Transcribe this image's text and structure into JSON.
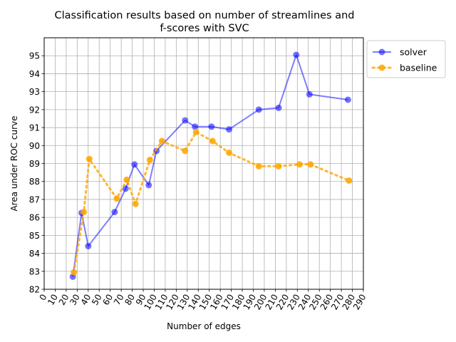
{
  "chart_data": {
    "type": "line",
    "title": [
      "Classification results based on number of streamlines and",
      "f-scores with SVC"
    ],
    "xlabel": "Number of edges",
    "ylabel": "Area under ROC curve",
    "xlim": [
      0,
      290
    ],
    "ylim": [
      82,
      96
    ],
    "xticks": [
      0,
      10,
      20,
      30,
      40,
      50,
      60,
      70,
      80,
      90,
      100,
      110,
      120,
      130,
      140,
      150,
      160,
      170,
      180,
      190,
      200,
      210,
      220,
      230,
      240,
      250,
      260,
      270,
      280,
      290
    ],
    "yticks": [
      82,
      83,
      84,
      85,
      86,
      87,
      88,
      89,
      90,
      91,
      92,
      93,
      94,
      95
    ],
    "grid": true,
    "legend_position": "outside top-right",
    "series": [
      {
        "name": "solver",
        "color": "#0000ff",
        "style": "solid",
        "x": [
          26,
          34,
          40,
          64,
          74,
          82,
          95,
          102,
          128,
          137,
          152,
          168,
          195,
          213,
          229,
          241,
          276
        ],
        "y": [
          82.7,
          86.25,
          84.4,
          86.3,
          87.6,
          88.95,
          87.8,
          89.7,
          91.4,
          91.05,
          91.05,
          90.9,
          92.0,
          92.1,
          95.05,
          92.85,
          92.55
        ]
      },
      {
        "name": "baseline",
        "color": "#ffa500",
        "style": "dotted",
        "x": [
          27,
          36,
          41,
          66,
          75,
          83,
          96,
          107,
          128,
          138,
          153,
          168,
          195,
          213,
          232,
          242,
          277
        ],
        "y": [
          82.95,
          86.3,
          89.25,
          87.05,
          88.1,
          86.75,
          89.2,
          90.25,
          89.7,
          90.75,
          90.25,
          89.6,
          88.85,
          88.85,
          88.95,
          88.95,
          88.05
        ]
      }
    ]
  }
}
